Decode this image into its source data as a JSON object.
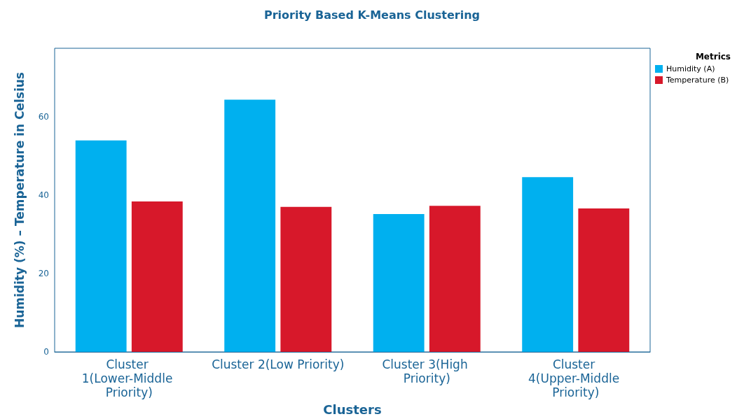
{
  "chart_data": {
    "type": "bar",
    "title": "Priority Based K-Means Clustering",
    "xlabel": "Clusters",
    "ylabel": "Humidity (%) – Temperature in Celsius",
    "legend_title": "Metrics",
    "categories": [
      "Cluster 1(Lower-Middle Priority)",
      "Cluster 2(Low Priority)",
      "Cluster 3(High Priority)",
      "Cluster 4(Upper-Middle Priority)"
    ],
    "series": [
      {
        "name": "Humidity (A)",
        "color": "#00b0ef",
        "values": [
          54.0,
          64.4,
          35.2,
          44.6
        ]
      },
      {
        "name": "Temperature (B)",
        "color": "#d7182a",
        "values": [
          38.4,
          37.0,
          37.3,
          36.6
        ]
      }
    ],
    "ylim": [
      0,
      77.5
    ],
    "yticks": [
      0,
      20,
      40,
      60
    ],
    "grid": false,
    "legend": "top right"
  }
}
